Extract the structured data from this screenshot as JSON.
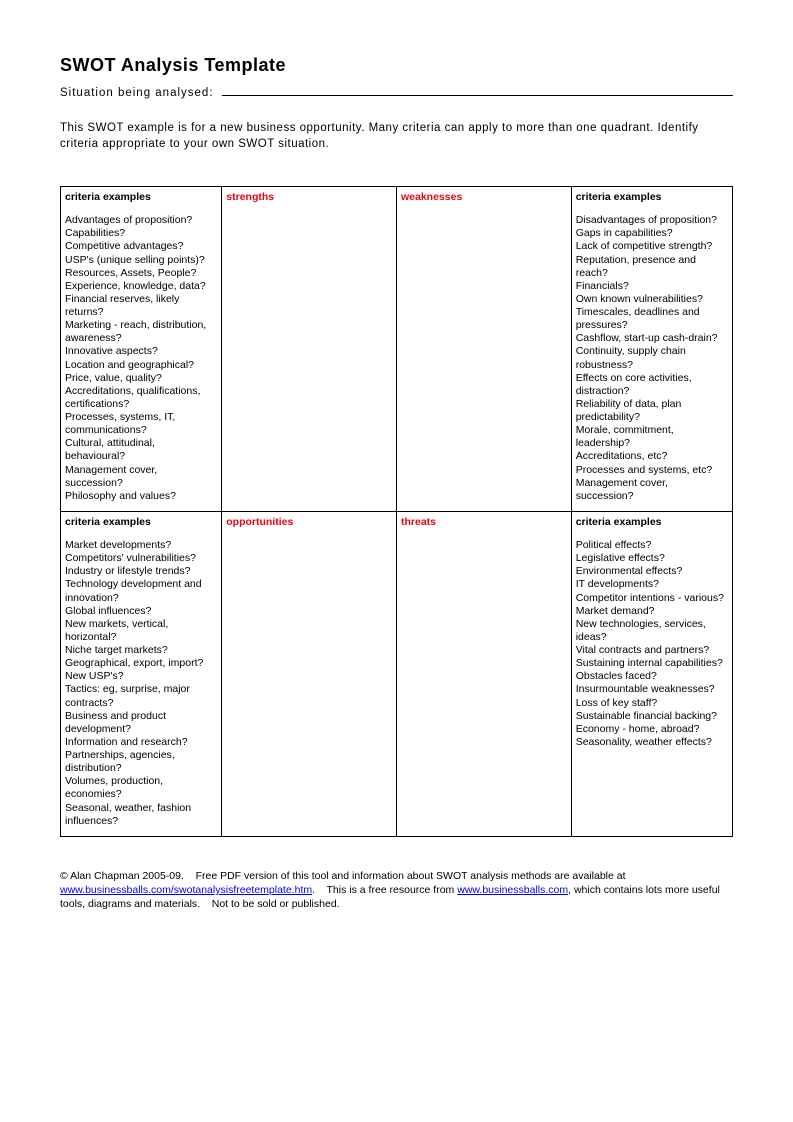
{
  "title": "SWOT Analysis Template",
  "situation_label": "Situation being analysed:",
  "intro": "This SWOT example is for a new business opportunity. Many criteria can apply to more than one quadrant. Identify criteria appropriate to your own SWOT situation.",
  "headers": {
    "criteria_examples": "criteria examples",
    "strengths": "strengths",
    "weaknesses": "weaknesses",
    "opportunities": "opportunities",
    "threats": "threats"
  },
  "strengths_examples": [
    "Advantages of proposition?",
    "Capabilities?",
    "Competitive advantages?",
    "USP's (unique selling points)?",
    "Resources, Assets, People?",
    "Experience, knowledge, data?",
    "Financial reserves, likely returns?",
    "Marketing - reach, distribution, awareness?",
    "Innovative aspects?",
    "Location and geographical?",
    "Price, value, quality?",
    "Accreditations, qualifications, certifications?",
    "Processes, systems, IT, communications?",
    "Cultural, attitudinal, behavioural?",
    "Management cover, succession?",
    "Philosophy and values?"
  ],
  "weaknesses_examples": [
    "Disadvantages of proposition?",
    "Gaps in capabilities?",
    "Lack of competitive strength?",
    "Reputation, presence and reach?",
    "Financials?",
    "Own known vulnerabilities?",
    "Timescales, deadlines and pressures?",
    "Cashflow, start-up cash-drain?",
    "Continuity, supply chain robustness?",
    "Effects on core activities, distraction?",
    "Reliability of data, plan predictability?",
    "Morale, commitment, leadership?",
    "Accreditations, etc?",
    "Processes and systems, etc?",
    "Management cover, succession?"
  ],
  "opportunities_examples": [
    "Market developments?",
    "Competitors' vulnerabilities?",
    "Industry or lifestyle trends?",
    "Technology development and innovation?",
    "Global influences?",
    "New markets, vertical, horizontal?",
    "Niche target markets?",
    "Geographical, export, import?",
    "New USP's?",
    "Tactics: eg, surprise, major contracts?",
    "Business and product development?",
    "Information and research?",
    "Partnerships, agencies, distribution?",
    "Volumes, production, economies?",
    "Seasonal, weather, fashion influences?"
  ],
  "threats_examples": [
    "Political effects?",
    "Legislative effects?",
    "Environmental effects?",
    "IT developments?",
    "Competitor intentions - various?",
    "Market demand?",
    "New technologies, services, ideas?",
    "Vital contracts and partners?",
    "Sustaining internal capabilities?",
    "Obstacles faced?",
    "Insurmountable weaknesses?",
    "Loss of key staff?",
    "Sustainable financial backing?",
    "Economy - home, abroad?",
    "Seasonality, weather effects?"
  ],
  "footer": {
    "copyright": "© Alan Chapman 2005-09.",
    "text1": "Free PDF version of this tool and information about SWOT analysis methods are available at",
    "link1": "www.businessballs.com/swotanalysisfreetemplate.htm",
    "text2": "This is a free resource from",
    "link2": "www.businessballs.com",
    "text3": ", which contains lots more useful tools, diagrams and materials.",
    "text4": "Not to be sold or published."
  },
  "colors": {
    "text": "#000000",
    "accent_red": "#e30613",
    "link": "#0000ee",
    "background": "#ffffff",
    "border": "#000000"
  }
}
